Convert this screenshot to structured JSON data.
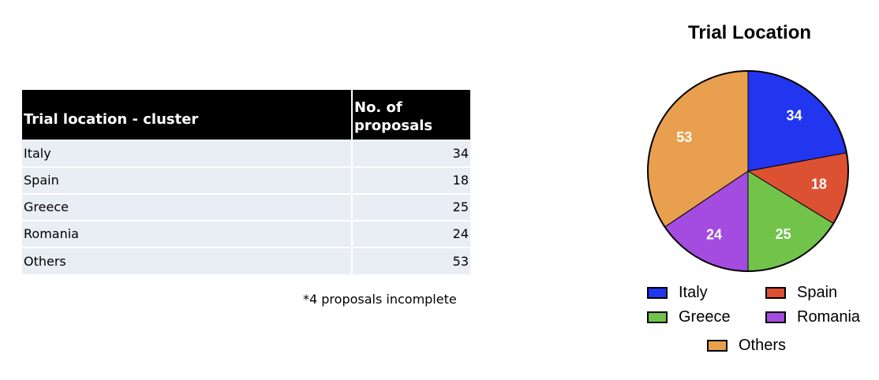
{
  "table": {
    "headers": [
      "Trial location - cluster",
      "No. of proposals"
    ],
    "rows": [
      {
        "label": "Italy",
        "value": "34"
      },
      {
        "label": "Spain",
        "value": "18"
      },
      {
        "label": "Greece",
        "value": "25"
      },
      {
        "label": "Romania",
        "value": "24"
      },
      {
        "label": "Others",
        "value": "53"
      }
    ],
    "footnote": "*4 proposals incomplete"
  },
  "chart_data": {
    "type": "pie",
    "title": "Trial Location",
    "categories": [
      "Italy",
      "Spain",
      "Greece",
      "Romania",
      "Others"
    ],
    "values": [
      34,
      18,
      25,
      24,
      53
    ],
    "colors": [
      "#2236f0",
      "#dd5133",
      "#72c34a",
      "#a44be0",
      "#e8a04e"
    ],
    "legend_position": "bottom"
  }
}
